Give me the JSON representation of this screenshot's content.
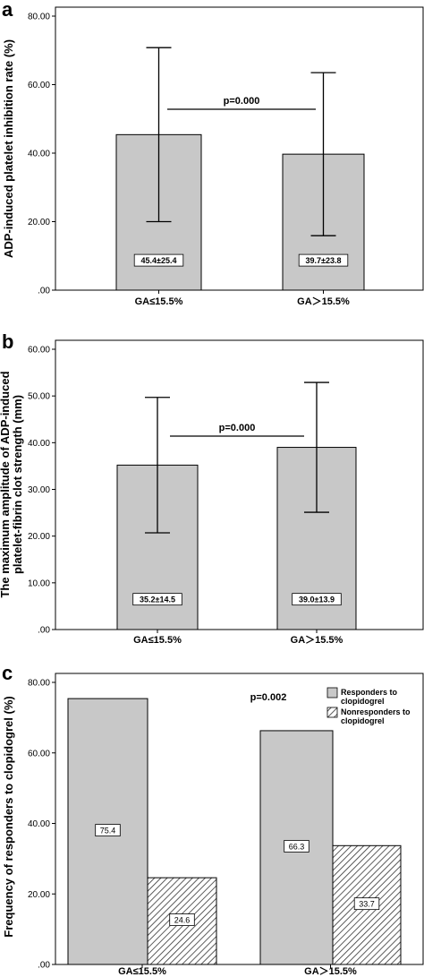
{
  "chart_data": [
    {
      "type": "bar",
      "panel": "a",
      "ylabel": "ADP-induced platelet inhibition rate (%)",
      "ylim": [
        0,
        80
      ],
      "yticks": [
        0,
        20,
        40,
        60,
        80
      ],
      "ytick_labels": [
        ".00",
        "20.00",
        "40.00",
        "60.00",
        "80.00"
      ],
      "categories": [
        "GA≤15.5%",
        "GA＞15.5%"
      ],
      "values": [
        45.4,
        39.7
      ],
      "error_upper": [
        70.8,
        63.5
      ],
      "error_lower": [
        20.0,
        15.9
      ],
      "data_labels": [
        "45.4±25.4",
        "39.7±23.8"
      ],
      "annotation": "p=0.000",
      "grid": false
    },
    {
      "type": "bar",
      "panel": "b",
      "ylabel": "The maximum amplitude of ADP-induced platelet-fibrin clot strength (mm)",
      "ylabel_lines": [
        "The maximum amplitude of ADP-induced",
        "platelet-fibrin clot strength (mm)"
      ],
      "ylim": [
        0,
        60
      ],
      "yticks": [
        0,
        10,
        20,
        30,
        40,
        50,
        60
      ],
      "ytick_labels": [
        ".00",
        "10.00",
        "20.00",
        "30.00",
        "40.00",
        "50.00",
        "60.00"
      ],
      "categories": [
        "GA≤15.5%",
        "GA＞15.5%"
      ],
      "values": [
        35.2,
        39.0
      ],
      "error_upper": [
        49.7,
        52.9
      ],
      "error_lower": [
        20.7,
        25.1
      ],
      "data_labels": [
        "35.2±14.5",
        "39.0±13.9"
      ],
      "annotation": "p=0.000",
      "grid": false
    },
    {
      "type": "bar",
      "panel": "c",
      "ylabel": "Frequency of responders  to clopidogrel (%)",
      "ylim": [
        0,
        80
      ],
      "yticks": [
        0,
        20,
        40,
        60,
        80
      ],
      "ytick_labels": [
        ".00",
        "20.00",
        "40.00",
        "60.00",
        "80.00"
      ],
      "categories": [
        "GA≤15.5%",
        "GA＞15.5%"
      ],
      "series": [
        {
          "name": "Responders to clopidogrel",
          "legend_lines": [
            "Responders to",
            "clopidogrel"
          ],
          "values": [
            75.4,
            66.3
          ],
          "data_labels": [
            "75.4",
            "66.3"
          ],
          "fill": "#c8c8c8"
        },
        {
          "name": "Nonresponders to clopidogrel",
          "legend_lines": [
            "Nonresponders to",
            "clopidogrel"
          ],
          "values": [
            24.6,
            33.7
          ],
          "data_labels": [
            "24.6",
            "33.7"
          ],
          "fill": "hatch"
        }
      ],
      "annotation": "p=0.002",
      "legend": "top-right",
      "grid": false
    }
  ],
  "colors": {
    "bar_fill": "#c8c8c8",
    "stroke": "#000000",
    "background": "#ffffff"
  }
}
